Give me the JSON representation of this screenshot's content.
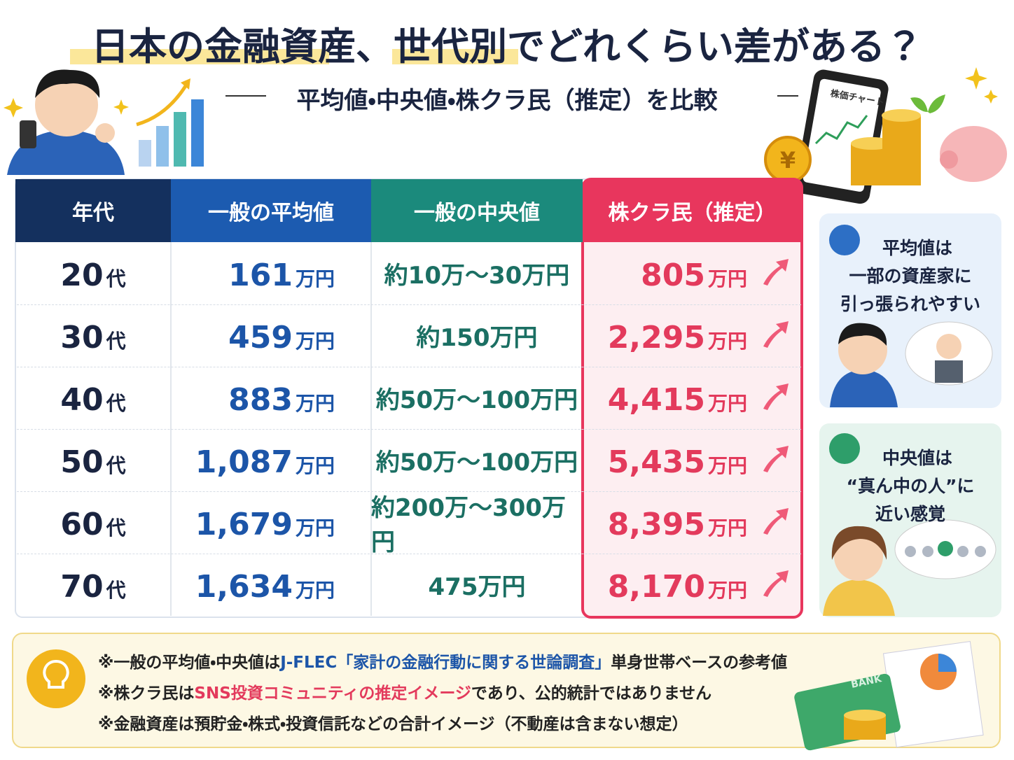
{
  "header": {
    "title": "日本の金融資産、世代別でどれくらい差がある？",
    "subtitle": "平均値・中央値・株クラ民（推定）を比較"
  },
  "table": {
    "columns": [
      "年代",
      "一般の平均値",
      "一般の中央値",
      "株クラ民（推定）"
    ],
    "rows": [
      {
        "age": {
          "number": "20",
          "unit": "代"
        },
        "average": {
          "number": "161",
          "unit": "万円"
        },
        "median": "約10万〜30万円",
        "kabukura": {
          "number": "805",
          "unit": "万円"
        }
      },
      {
        "age": {
          "number": "30",
          "unit": "代"
        },
        "average": {
          "number": "459",
          "unit": "万円"
        },
        "median": "約150万円",
        "kabukura": {
          "number": "2,295",
          "unit": "万円"
        }
      },
      {
        "age": {
          "number": "40",
          "unit": "代"
        },
        "average": {
          "number": "883",
          "unit": "万円"
        },
        "median": "約50万〜100万円",
        "kabukura": {
          "number": "4,415",
          "unit": "万円"
        }
      },
      {
        "age": {
          "number": "50",
          "unit": "代"
        },
        "average": {
          "number": "1,087",
          "unit": "万円"
        },
        "median": "約50万〜100万円",
        "kabukura": {
          "number": "5,435",
          "unit": "万円"
        }
      },
      {
        "age": {
          "number": "60",
          "unit": "代"
        },
        "average": {
          "number": "1,679",
          "unit": "万円"
        },
        "median": "約200万〜300万円",
        "kabukura": {
          "number": "8,395",
          "unit": "万円"
        }
      },
      {
        "age": {
          "number": "70",
          "unit": "代"
        },
        "average": {
          "number": "1,634",
          "unit": "万円"
        },
        "median": "475万円",
        "kabukura": {
          "number": "8,170",
          "unit": "万円"
        }
      }
    ]
  },
  "notes": [
    {
      "lines": [
        "平均値は",
        "一部の資産家に",
        "引っ張られやすい"
      ]
    },
    {
      "lines": [
        "中央値は",
        "“真ん中の人”に",
        "近い感覚"
      ]
    }
  ],
  "illustration_text": {
    "phone": "株価チャート",
    "card": "BANK"
  },
  "footnotes": [
    [
      {
        "text": "※一般の平均値・中央値は"
      },
      {
        "text": "J-FLEC「家計の金融行動に関する世論調査」",
        "color": "#1c55a8"
      },
      {
        "text": "単身世帯ベースの参考値"
      }
    ],
    [
      {
        "text": "※株クラ民は"
      },
      {
        "text": "SNS投資コミュニティの推定イメージ",
        "color": "#e33a5c"
      },
      {
        "text": "であり、公的統計ではありません"
      }
    ],
    [
      {
        "text": "※金融資産は預貯金・株式・投資信託などの合計イメージ（不動産は含まない想定）"
      }
    ]
  ]
}
